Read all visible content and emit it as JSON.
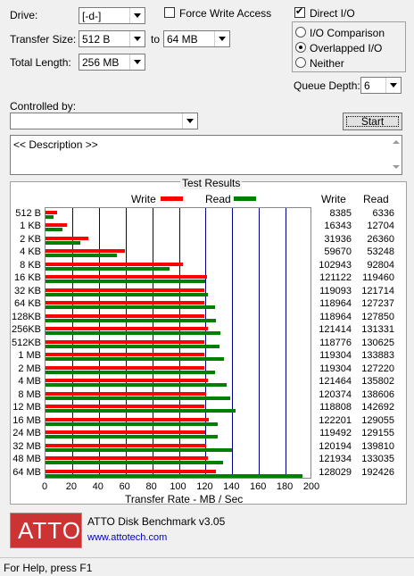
{
  "drive": {
    "label": "Drive:",
    "value": "[-d-]"
  },
  "transfer_size": {
    "label": "Transfer Size:",
    "from": "512 B",
    "to_label": "to",
    "to": "64 MB"
  },
  "total_length": {
    "label": "Total Length:",
    "value": "256 MB"
  },
  "force_write": {
    "label": "Force Write Access",
    "checked": false
  },
  "direct_io": {
    "label": "Direct I/O",
    "checked": true
  },
  "io_mode": {
    "options": [
      "I/O Comparison",
      "Overlapped I/O",
      "Neither"
    ],
    "selected": 1
  },
  "queue_depth": {
    "label": "Queue Depth:",
    "value": "6"
  },
  "controlled_by": {
    "label": "Controlled by:",
    "value": ""
  },
  "start_button": "Start",
  "description": "<< Description >>",
  "results": {
    "title": "Test Results",
    "legend_write": "Write",
    "legend_read": "Read",
    "col_write": "Write",
    "col_read": "Read"
  },
  "colors": {
    "write": "#ff0000",
    "read": "#008000",
    "grid": "#00008b",
    "logo_bg": "#cc3333"
  },
  "chart_data": {
    "type": "bar",
    "title": "Test Results",
    "xlabel": "Transfer Rate - MB / Sec",
    "xlim": [
      0,
      200
    ],
    "x_ticks": [
      0,
      20,
      40,
      60,
      80,
      100,
      120,
      140,
      160,
      180,
      200
    ],
    "tick_labels": [
      "0",
      "20",
      "40",
      "60",
      "80",
      "100",
      "120",
      "140",
      "160",
      "180",
      "200"
    ],
    "categories": [
      "512 B",
      "1 KB",
      "2 KB",
      "4 KB",
      "8 KB",
      "16 KB",
      "32 KB",
      "64 KB",
      "128KB",
      "256KB",
      "512KB",
      "1 MB",
      "2 MB",
      "4 MB",
      "8 MB",
      "12 MB",
      "16 MB",
      "24 MB",
      "32 MB",
      "48 MB",
      "64 MB"
    ],
    "series": [
      {
        "name": "Write",
        "values_kb": [
          8385,
          16343,
          31936,
          59670,
          102943,
          121122,
          119093,
          118964,
          118964,
          121414,
          118776,
          119304,
          119304,
          121464,
          120374,
          118808,
          122201,
          119492,
          120194,
          121934,
          128029
        ]
      },
      {
        "name": "Read",
        "values_kb": [
          6336,
          12704,
          26360,
          53248,
          92804,
          119460,
          121714,
          127237,
          127850,
          131331,
          130625,
          133883,
          127220,
          135802,
          138606,
          142692,
          129055,
          129155,
          139810,
          133035,
          192426
        ]
      }
    ],
    "grid": true,
    "legend": "top"
  },
  "logo": {
    "text": "ATTO"
  },
  "product": "ATTO Disk Benchmark v3.05",
  "website": "www.attotech.com",
  "status": "For Help, press F1"
}
